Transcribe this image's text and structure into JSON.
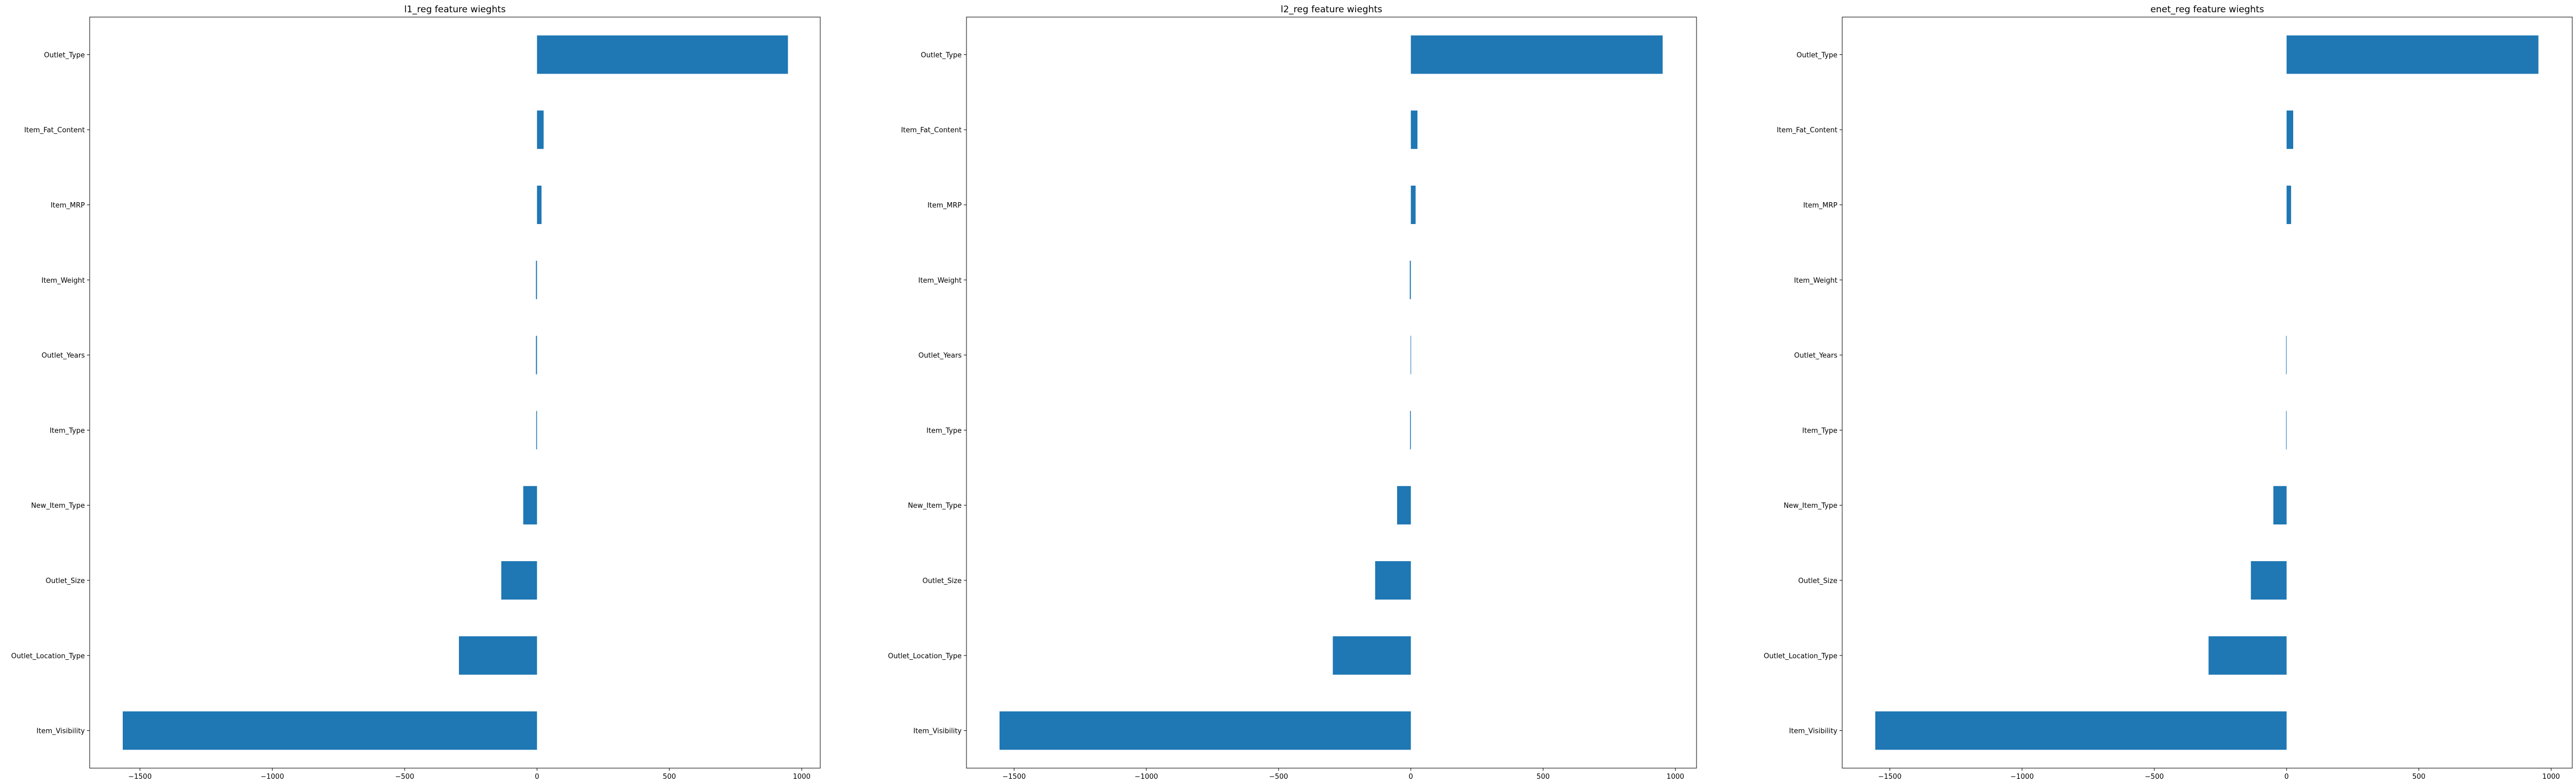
{
  "chart_data": [
    {
      "type": "bar",
      "orientation": "horizontal",
      "title": "l1_reg feature wieghts",
      "xlabel": "",
      "ylabel": "",
      "categories": [
        "Item_Visibility",
        "Outlet_Location_Type",
        "Outlet_Size",
        "New_Item_Type",
        "Item_Type",
        "Outlet_Years",
        "Item_Weight",
        "Item_MRP",
        "Item_Fat_Content",
        "Outlet_Type"
      ],
      "values": [
        -1565,
        -295,
        -135,
        -52,
        -3,
        -4,
        -4,
        17,
        25,
        948
      ],
      "xlim": [
        -1690,
        1070
      ],
      "xticks": [
        -1500,
        -1000,
        -500,
        0,
        500,
        1000
      ],
      "xtick_labels": [
        "−1500",
        "−1000",
        "−500",
        "0",
        "500",
        "1000"
      ],
      "grid": false,
      "color": "#1f77b4"
    },
    {
      "type": "bar",
      "orientation": "horizontal",
      "title": "l2_reg feature wieghts",
      "xlabel": "",
      "ylabel": "",
      "categories": [
        "Item_Visibility",
        "Outlet_Location_Type",
        "Outlet_Size",
        "New_Item_Type",
        "Item_Type",
        "Outlet_Years",
        "Item_Weight",
        "Item_MRP",
        "Item_Fat_Content",
        "Outlet_Type"
      ],
      "values": [
        -1555,
        -295,
        -135,
        -52,
        -3,
        -1,
        -4,
        18,
        25,
        952
      ],
      "xlim": [
        -1680,
        1080
      ],
      "xticks": [
        -1500,
        -1000,
        -500,
        0,
        500,
        1000
      ],
      "xtick_labels": [
        "−1500",
        "−1000",
        "−500",
        "0",
        "500",
        "1000"
      ],
      "grid": false,
      "color": "#1f77b4"
    },
    {
      "type": "bar",
      "orientation": "horizontal",
      "title": "enet_reg feature wieghts",
      "xlabel": "",
      "ylabel": "",
      "categories": [
        "Item_Visibility",
        "Outlet_Location_Type",
        "Outlet_Size",
        "New_Item_Type",
        "Item_Type",
        "Outlet_Years",
        "Item_Weight",
        "Item_MRP",
        "Item_Fat_Content",
        "Outlet_Type"
      ],
      "values": [
        -1555,
        -295,
        -135,
        -50,
        -2,
        -2,
        0,
        17,
        25,
        952
      ],
      "xlim": [
        -1680,
        1080
      ],
      "xticks": [
        -1500,
        -1000,
        -500,
        0,
        500,
        1000
      ],
      "xtick_labels": [
        "−1500",
        "−1000",
        "−500",
        "0",
        "500",
        "1000"
      ],
      "grid": false,
      "color": "#1f77b4"
    }
  ]
}
